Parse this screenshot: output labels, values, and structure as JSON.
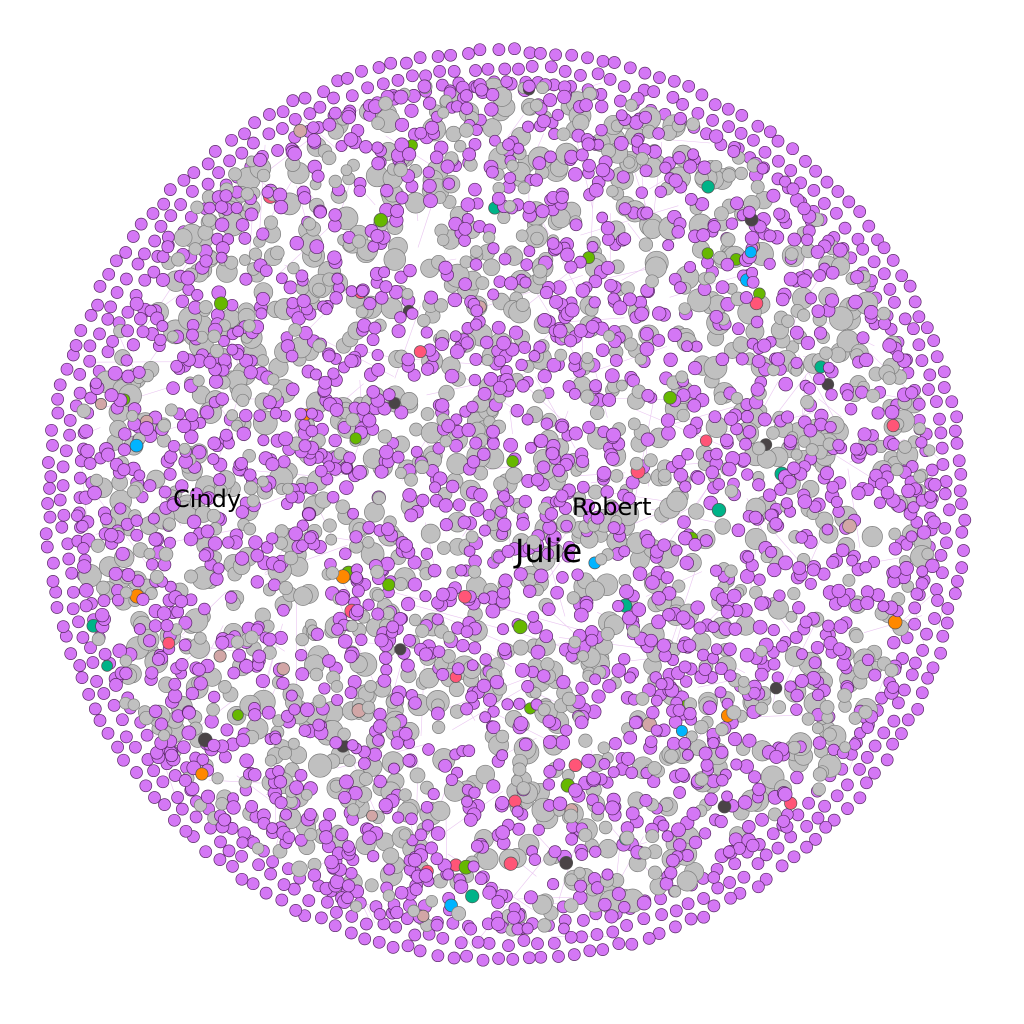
{
  "graph": {
    "colors": {
      "dominant": "#d477f5",
      "dominant_stroke": "#5a2a66",
      "secondary": "#c0c0c0",
      "secondary_stroke": "#7f7f7f",
      "accents": [
        "#ff5577",
        "#ff8800",
        "#00b4ff",
        "#00b388",
        "#66b800",
        "#4a4446",
        "#d2a6a6"
      ],
      "edge": "#e9c5f0"
    },
    "labels": [
      {
        "text": "Cindy"
      },
      {
        "text": "Robert"
      },
      {
        "text": "Julie"
      }
    ]
  }
}
